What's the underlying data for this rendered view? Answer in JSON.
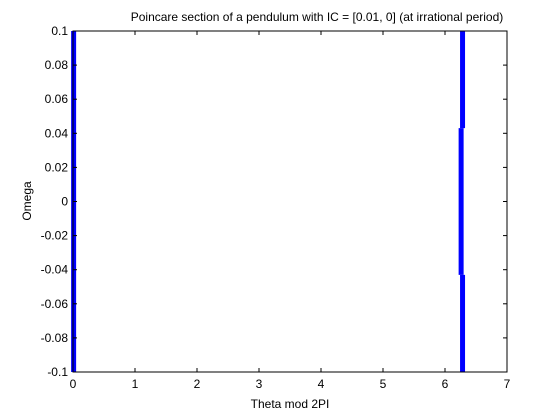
{
  "chart_data": {
    "type": "scatter",
    "title": "Poincare section of a pendulum with IC = [0.01, 0] (at irrational period)",
    "xlabel": "Theta mod 2PI",
    "ylabel": "Omega",
    "xlim": [
      0,
      7
    ],
    "ylim": [
      -0.1,
      0.1
    ],
    "xticks": [
      "0",
      "1",
      "2",
      "3",
      "4",
      "5",
      "6",
      "7"
    ],
    "yticks": [
      "-0.1",
      "-0.08",
      "-0.06",
      "-0.04",
      "-0.02",
      "0",
      "0.02",
      "0.04",
      "0.06",
      "0.08",
      "0.1"
    ],
    "grid": false,
    "series": [
      {
        "color": "#0000ff",
        "segments": [
          {
            "x": 0.01,
            "y_from": -0.1,
            "y_to": 0.1
          },
          {
            "x": 6.283,
            "y_from": 0.043,
            "y_to": 0.1
          },
          {
            "x": 6.26,
            "y_from": -0.043,
            "y_to": 0.043
          },
          {
            "x": 6.283,
            "y_from": -0.1,
            "y_to": -0.043
          }
        ]
      }
    ]
  }
}
